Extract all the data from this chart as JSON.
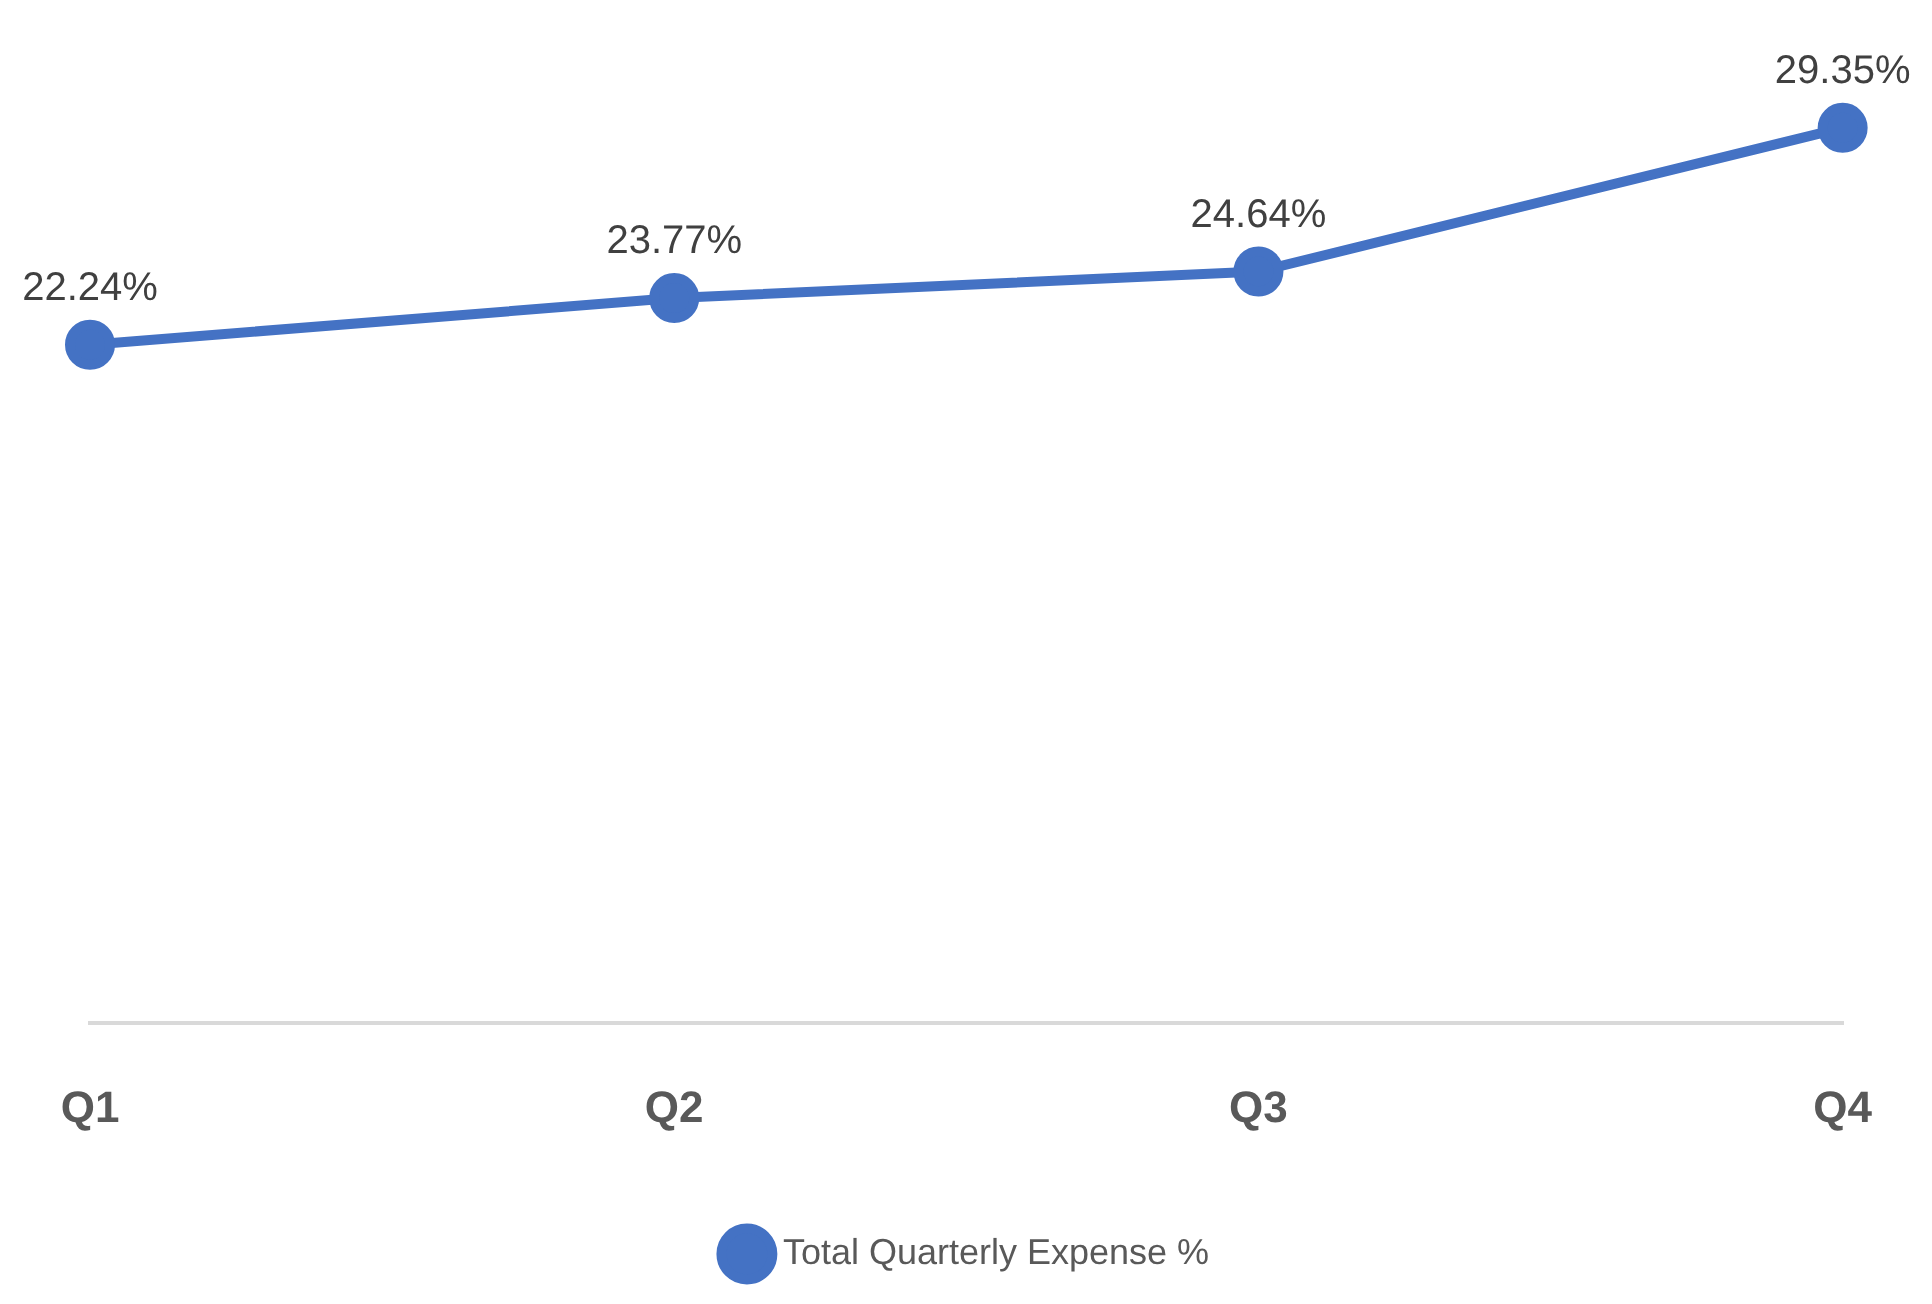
{
  "chart_data": {
    "type": "line",
    "categories": [
      "Q1",
      "Q2",
      "Q3",
      "Q4"
    ],
    "series": [
      {
        "name": "Total Quarterly Expense %",
        "color": "#4472c4",
        "values": [
          22.24,
          23.77,
          24.64,
          29.35
        ],
        "value_labels": [
          "22.24%",
          "23.77%",
          "24.64%",
          "29.35%"
        ]
      }
    ],
    "tick_labels": "x",
    "legend": "bottom",
    "marker": "circle",
    "grid": false
  }
}
